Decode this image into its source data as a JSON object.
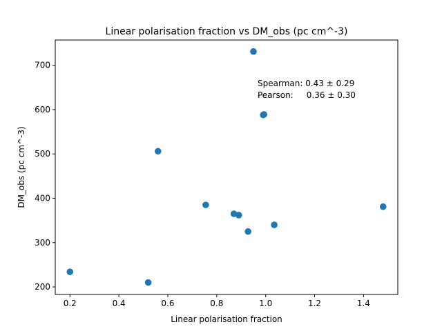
{
  "chart_data": {
    "type": "scatter",
    "title": "Linear polarisation fraction vs DM_obs (pc cm^-3)",
    "xlabel": "Linear polarisation fraction",
    "ylabel": "DM_obs (pc cm^-3)",
    "xlim": [
      0.14,
      1.54
    ],
    "ylim": [
      183,
      757
    ],
    "xticks": [
      0.2,
      0.4,
      0.6,
      0.8,
      1.0,
      1.2,
      1.4
    ],
    "xtick_labels": [
      "0.2",
      "0.4",
      "0.6",
      "0.8",
      "1.0",
      "1.2",
      "1.4"
    ],
    "yticks": [
      200,
      300,
      400,
      500,
      600,
      700
    ],
    "ytick_labels": [
      "200",
      "300",
      "400",
      "500",
      "600",
      "700"
    ],
    "grid": false,
    "marker_color": "#1f77b4",
    "points": [
      {
        "x": 0.2,
        "y": 234
      },
      {
        "x": 0.52,
        "y": 210
      },
      {
        "x": 0.56,
        "y": 506
      },
      {
        "x": 0.755,
        "y": 385
      },
      {
        "x": 0.87,
        "y": 365
      },
      {
        "x": 0.89,
        "y": 362
      },
      {
        "x": 0.928,
        "y": 325
      },
      {
        "x": 0.95,
        "y": 731
      },
      {
        "x": 0.99,
        "y": 588
      },
      {
        "x": 0.993,
        "y": 589
      },
      {
        "x": 1.035,
        "y": 340
      },
      {
        "x": 1.48,
        "y": 381
      }
    ],
    "annotation_lines": [
      "Spearman: 0.43 ± 0.29",
      "Pearson:     0.36 ± 0.30"
    ]
  }
}
